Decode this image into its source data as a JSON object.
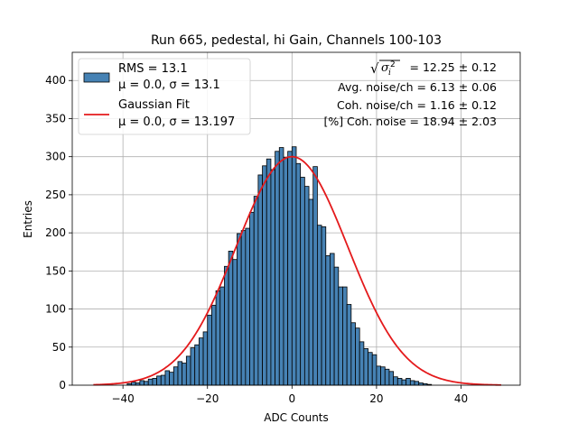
{
  "chart_data": {
    "type": "bar",
    "title": "Run 665, pedestal, hi Gain, Channels 100-103",
    "xlabel": "ADC Counts",
    "ylabel": "Entries",
    "xlim": [
      -52,
      54
    ],
    "ylim": [
      0,
      437
    ],
    "xticks": [
      -40,
      -20,
      0,
      20,
      40
    ],
    "yticks": [
      0,
      50,
      100,
      150,
      200,
      250,
      300,
      350,
      400
    ],
    "grid": true,
    "legend_placement": "top-left",
    "bar_color": "#4682b4",
    "fit_color": "#e41a1c",
    "bin_width": 1,
    "bins_start": -47,
    "histogram_counts": [
      0,
      0,
      0,
      0,
      0,
      0,
      0,
      0,
      2,
      4,
      3,
      6,
      5,
      8,
      9,
      12,
      13,
      19,
      17,
      24,
      31,
      29,
      38,
      49,
      53,
      62,
      70,
      92,
      105,
      124,
      129,
      156,
      176,
      165,
      199,
      203,
      206,
      227,
      248,
      276,
      288,
      297,
      283,
      307,
      312,
      299,
      307,
      313,
      291,
      273,
      261,
      244,
      287,
      210,
      208,
      170,
      173,
      155,
      129,
      129,
      106,
      82,
      75,
      57,
      48,
      43,
      40,
      25,
      24,
      21,
      18,
      11,
      9,
      7,
      9,
      6,
      5,
      3,
      2,
      1,
      0,
      0,
      0,
      0,
      0,
      0,
      0,
      0,
      0,
      0,
      0,
      0,
      0,
      0,
      0,
      0
    ],
    "series": [
      {
        "name": "RMS = 13.1",
        "name_line2": "μ = 0.0, σ = 13.1",
        "kind": "histogram"
      },
      {
        "name": "Gaussian Fit",
        "name_line2": "μ = 0.0, σ = 13.197",
        "kind": "line",
        "mu": 0.0,
        "sigma": 13.197,
        "amplitude": 300,
        "x_range": [
          -47,
          49.5
        ]
      }
    ],
    "annotations": [
      {
        "prefix": "√",
        "sym": "σ",
        "sub": "i",
        "sup": "2",
        "text": " = 12.25 ± 0.12"
      },
      {
        "text": "Avg. noise/ch = 6.13 ± 0.06"
      },
      {
        "text": "Coh. noise/ch = 1.16 ± 0.12"
      },
      {
        "text": "[%] Coh. noise = 18.94 ± 2.03"
      }
    ]
  }
}
